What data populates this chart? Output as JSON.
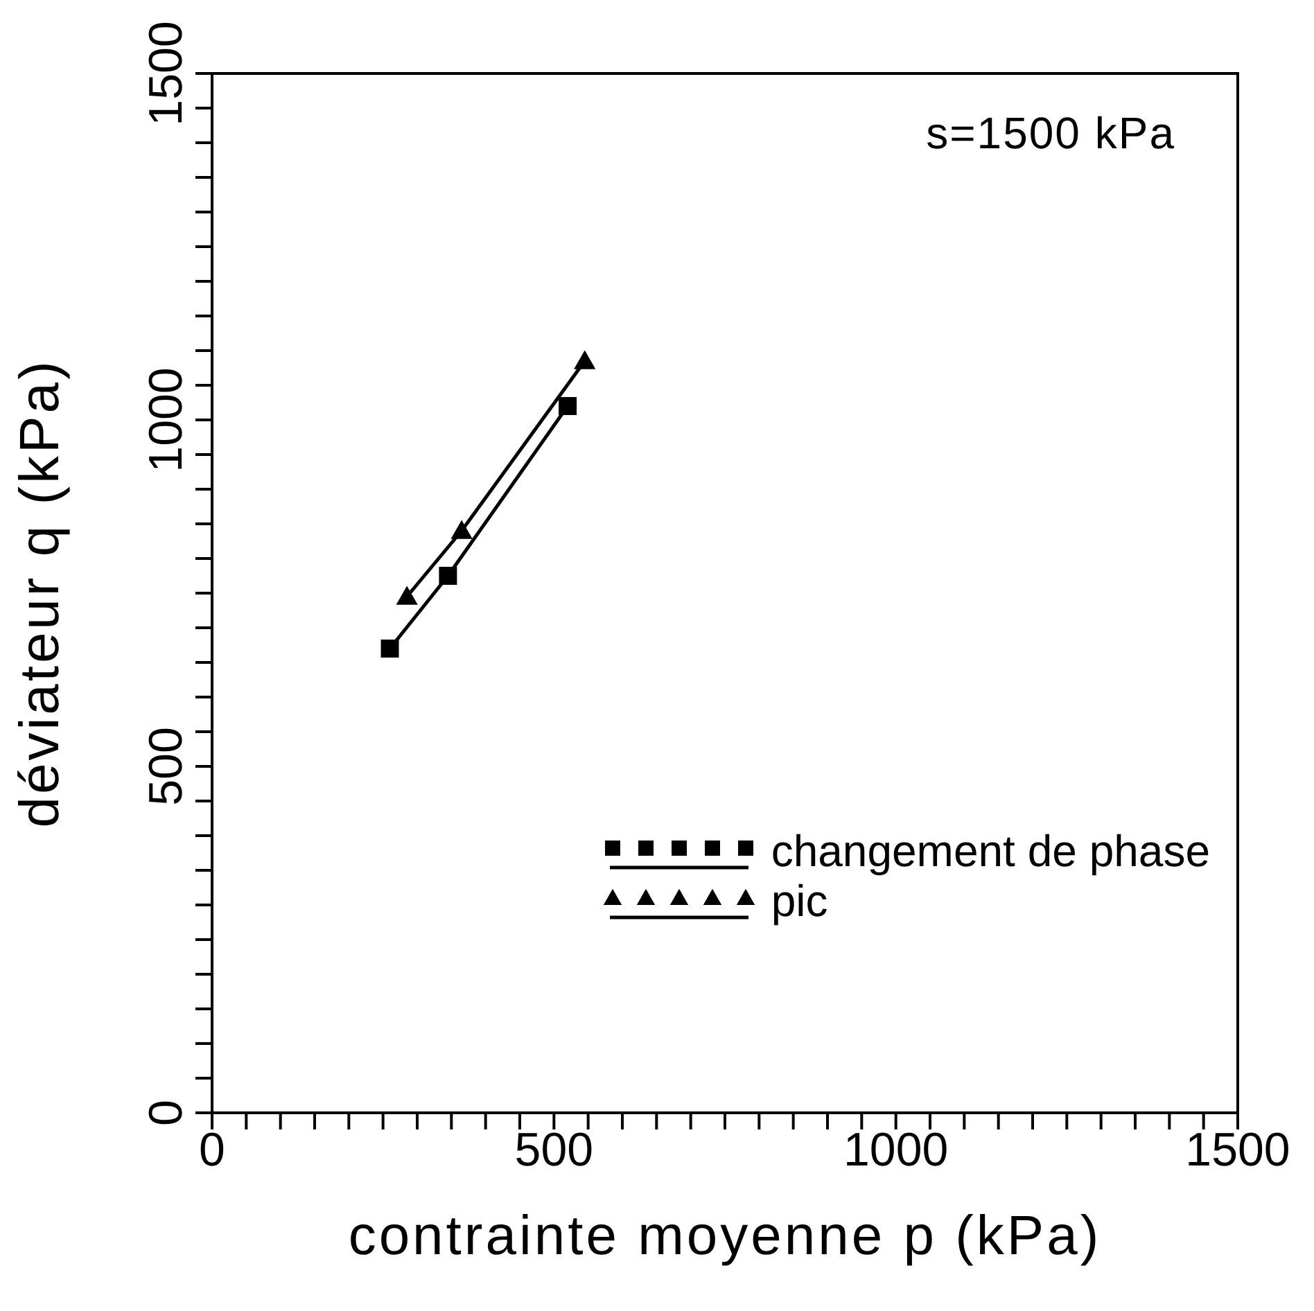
{
  "chart_data": {
    "type": "line",
    "xlabel": "contrainte moyenne p (kPa)",
    "ylabel": "déviateur q (kPa)",
    "annotations": [
      "s=1500 kPa"
    ],
    "xlim": [
      0,
      1500
    ],
    "ylim": [
      0,
      1500
    ],
    "xticks": [
      0,
      {
        "value": 50,
        "label": null
      },
      {
        "value": 100,
        "label": null
      },
      {
        "value": 150,
        "label": null
      },
      {
        "value": 200,
        "label": null
      },
      {
        "value": 250,
        "label": null
      },
      {
        "value": 300,
        "label": null
      },
      {
        "value": 350,
        "label": null
      },
      {
        "value": 400,
        "label": null
      },
      {
        "value": 450,
        "label": null
      },
      500,
      {
        "value": 550,
        "label": null
      },
      {
        "value": 600,
        "label": null
      },
      {
        "value": 650,
        "label": null
      },
      {
        "value": 700,
        "label": null
      },
      {
        "value": 750,
        "label": null
      },
      {
        "value": 800,
        "label": null
      },
      {
        "value": 850,
        "label": null
      },
      {
        "value": 900,
        "label": null
      },
      {
        "value": 950,
        "label": null
      },
      1000,
      {
        "value": 1050,
        "label": null
      },
      {
        "value": 1100,
        "label": null
      },
      {
        "value": 1150,
        "label": null
      },
      {
        "value": 1200,
        "label": null
      },
      {
        "value": 1250,
        "label": null
      },
      {
        "value": 1300,
        "label": null
      },
      {
        "value": 1350,
        "label": null
      },
      {
        "value": 1400,
        "label": null
      },
      {
        "value": 1450,
        "label": null
      },
      1500
    ],
    "yticks": [
      0,
      {
        "value": 50,
        "label": null
      },
      {
        "value": 100,
        "label": null
      },
      {
        "value": 150,
        "label": null
      },
      {
        "value": 200,
        "label": null
      },
      {
        "value": 250,
        "label": null
      },
      {
        "value": 300,
        "label": null
      },
      {
        "value": 350,
        "label": null
      },
      {
        "value": 400,
        "label": null
      },
      {
        "value": 450,
        "label": null
      },
      500,
      {
        "value": 550,
        "label": null
      },
      {
        "value": 600,
        "label": null
      },
      {
        "value": 650,
        "label": null
      },
      {
        "value": 700,
        "label": null
      },
      {
        "value": 750,
        "label": null
      },
      {
        "value": 800,
        "label": null
      },
      {
        "value": 850,
        "label": null
      },
      {
        "value": 900,
        "label": null
      },
      {
        "value": 950,
        "label": null
      },
      1000,
      {
        "value": 1050,
        "label": null
      },
      {
        "value": 1100,
        "label": null
      },
      {
        "value": 1150,
        "label": null
      },
      {
        "value": 1200,
        "label": null
      },
      {
        "value": 1250,
        "label": null
      },
      {
        "value": 1300,
        "label": null
      },
      {
        "value": 1350,
        "label": null
      },
      {
        "value": 1400,
        "label": null
      },
      {
        "value": 1450,
        "label": null
      },
      1500
    ],
    "legend": "bottom right",
    "line_style": "solid",
    "series": [
      {
        "name": "changement de phase",
        "color": "#000000",
        "marker": "square",
        "x": [
          260,
          345,
          520
        ],
        "values": [
          670,
          775,
          1020
        ]
      },
      {
        "name": "pic",
        "color": "#000000",
        "marker": "triangle",
        "x": [
          285,
          365,
          545
        ],
        "values": [
          745,
          840,
          1085
        ]
      }
    ]
  }
}
